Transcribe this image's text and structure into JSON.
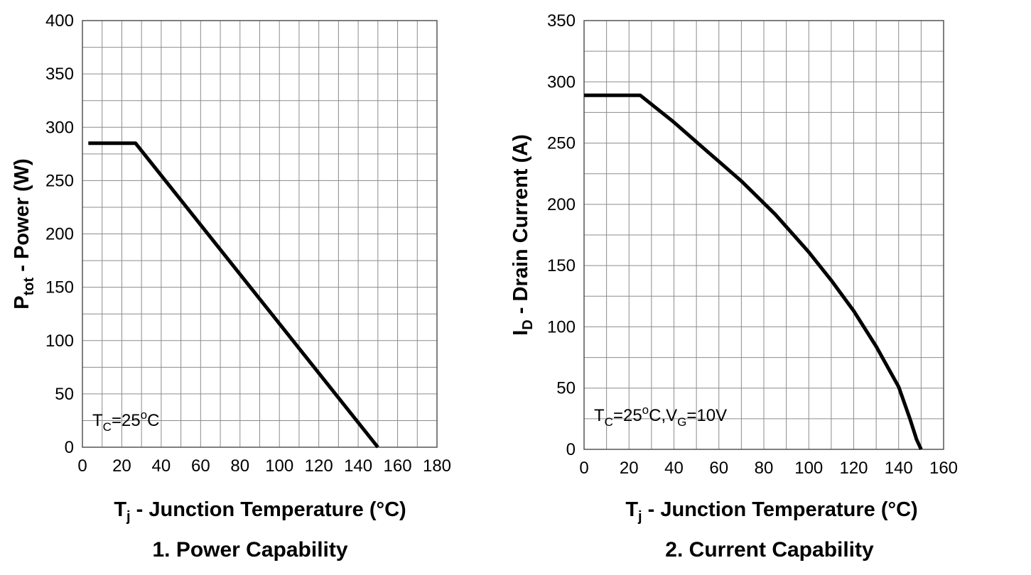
{
  "chart_data": [
    {
      "type": "line",
      "title": "1. Power Capability",
      "caption_number": "1.",
      "caption_text": "Power Capability",
      "xlabel_main": "T",
      "xlabel_sub": "j",
      "xlabel_rest": " - Junction Temperature (°C)",
      "ylabel_main": "P",
      "ylabel_sub": "tot",
      "ylabel_rest": " - Power (W)",
      "xlim": [
        0,
        180
      ],
      "ylim": [
        0,
        400
      ],
      "x_ticks": [
        0,
        20,
        40,
        60,
        80,
        100,
        120,
        140,
        160,
        180
      ],
      "x_tick_labels": [
        "0",
        "20",
        "40",
        "60",
        "80",
        "100",
        "120",
        "140",
        "160",
        "180"
      ],
      "y_ticks": [
        0,
        50,
        100,
        150,
        200,
        250,
        300,
        350,
        400
      ],
      "y_tick_labels": [
        "0",
        "50",
        "100",
        "150",
        "200",
        "250",
        "300",
        "350",
        "400"
      ],
      "minor_x_step": 10,
      "minor_y_step": 25,
      "grid": true,
      "annotation": {
        "main": "T",
        "sub": "C",
        "value": "=25",
        "degree": "o",
        "unit": "C"
      },
      "series": [
        {
          "name": "Ptot",
          "x": [
            3,
            27,
            150
          ],
          "y": [
            285,
            285,
            0
          ]
        }
      ]
    },
    {
      "type": "line",
      "title": "2. Current Capability",
      "caption_number": "2.",
      "caption_text": "Current Capability",
      "xlabel_main": "T",
      "xlabel_sub": "j",
      "xlabel_rest": " - Junction Temperature (°C)",
      "ylabel_main": "I",
      "ylabel_sub": "D",
      "ylabel_rest": " - Drain Current (A)",
      "xlim": [
        0,
        160
      ],
      "ylim": [
        0,
        350
      ],
      "x_ticks": [
        0,
        20,
        40,
        60,
        80,
        100,
        120,
        140,
        160
      ],
      "x_tick_labels": [
        "0",
        "20",
        "40",
        "60",
        "80",
        "100",
        "120",
        "140",
        "160"
      ],
      "y_ticks": [
        0,
        50,
        100,
        150,
        200,
        250,
        300,
        350
      ],
      "y_tick_labels": [
        "0",
        "50",
        "100",
        "150",
        "200",
        "250",
        "300",
        "350"
      ],
      "minor_x_step": 10,
      "minor_y_step": 25,
      "grid": true,
      "annotation": {
        "main": "T",
        "sub": "C",
        "value": "=25",
        "degree": "o",
        "unit": "C,V",
        "sub2": "G",
        "value2": "=10V"
      },
      "series": [
        {
          "name": "ID",
          "x": [
            0,
            25,
            40,
            55,
            70,
            85,
            100,
            110,
            120,
            130,
            140,
            145,
            148,
            150
          ],
          "y": [
            289,
            289,
            267,
            243,
            219,
            192,
            161,
            138,
            113,
            84,
            51,
            25,
            8,
            0
          ]
        }
      ]
    }
  ]
}
